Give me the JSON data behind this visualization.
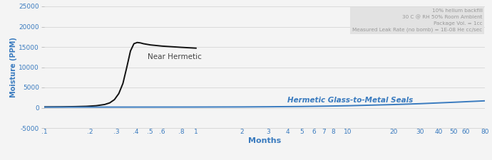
{
  "title": "",
  "xlabel": "Months",
  "ylabel": "Moisture (PPM)",
  "ylim": [
    -5000,
    25000
  ],
  "yticks": [
    -5000,
    0,
    5000,
    10000,
    15000,
    20000,
    25000
  ],
  "ytick_labels": [
    "-5000",
    "0",
    "5000",
    "10000",
    "15000",
    "20000",
    "25000"
  ],
  "xtick_vals": [
    0.1,
    0.2,
    0.3,
    0.4,
    0.5,
    0.6,
    0.8,
    1,
    2,
    3,
    4,
    5,
    6,
    7,
    8,
    10,
    20,
    30,
    40,
    50,
    60,
    80
  ],
  "xtick_labels": [
    ".1",
    ".2",
    ".3",
    ".4",
    ".5",
    ".6",
    ".8",
    "1",
    "2",
    "3",
    "4",
    "5",
    "6",
    "7",
    "8",
    "10",
    "20",
    "30",
    "40",
    "50",
    "60",
    "80"
  ],
  "near_hermetic_label": "Near Hermetic",
  "hermetic_label": "Hermetic Glass-to-Metal Seals",
  "annotation_lines": [
    "10% helium backfill",
    "30 C @ RH 50% Room Ambient",
    "Package Vol. = 1cc",
    "Measured Leak Rate (no bomb) = 1E-08 He cc/sec"
  ],
  "near_hermetic_color": "#111111",
  "hermetic_color": "#3a7bbf",
  "annotation_bg_color": "#e2e2e2",
  "annotation_text_color": "#999999",
  "background_color": "#f4f4f4",
  "grid_color": "#d0d0d0",
  "axis_label_color": "#3a7bbf",
  "tick_label_color": "#3a7bbf",
  "near_hermetic_x": [
    0.1,
    0.13,
    0.16,
    0.19,
    0.22,
    0.25,
    0.27,
    0.29,
    0.31,
    0.33,
    0.35,
    0.37,
    0.39,
    0.41,
    0.43,
    0.45,
    0.5,
    0.6,
    0.8,
    1.0
  ],
  "near_hermetic_y": [
    200,
    230,
    280,
    350,
    500,
    800,
    1200,
    2000,
    3500,
    6000,
    10000,
    14000,
    15800,
    16100,
    16000,
    15800,
    15500,
    15200,
    14900,
    14700
  ],
  "hermetic_x": [
    0.1,
    0.2,
    0.3,
    0.5,
    0.8,
    1,
    2,
    3,
    5,
    7,
    10,
    20,
    30,
    50,
    80
  ],
  "hermetic_y": [
    150,
    155,
    160,
    165,
    170,
    175,
    200,
    240,
    310,
    390,
    490,
    780,
    1000,
    1350,
    1700
  ]
}
